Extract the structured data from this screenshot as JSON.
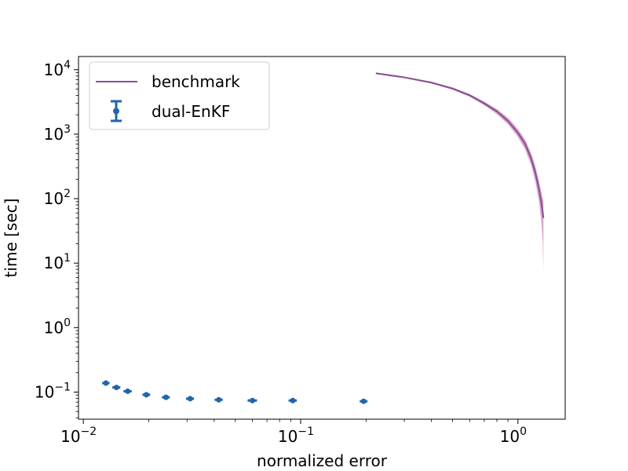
{
  "chart_data": {
    "type": "line",
    "x_scale": "log",
    "y_scale": "log",
    "xlim": [
      0.0095,
      1.65
    ],
    "ylim": [
      0.038,
      16000
    ],
    "xlabel": "normalized error",
    "ylabel": "time [sec]",
    "grid": false,
    "legend_position": "upper-left",
    "x_ticks": [
      {
        "value": 0.01,
        "base": "10",
        "exp": "−2"
      },
      {
        "value": 0.1,
        "base": "10",
        "exp": "−1"
      },
      {
        "value": 1,
        "base": "10",
        "exp": "0"
      }
    ],
    "y_ticks": [
      {
        "value": 0.1,
        "base": "10",
        "exp": "−1"
      },
      {
        "value": 1,
        "base": "10",
        "exp": "0"
      },
      {
        "value": 10,
        "base": "10",
        "exp": "1"
      },
      {
        "value": 100,
        "base": "10",
        "exp": "2"
      },
      {
        "value": 1000,
        "base": "10",
        "exp": "3"
      },
      {
        "value": 10000,
        "base": "10",
        "exp": "4"
      }
    ],
    "series": [
      {
        "name": "benchmark",
        "kind": "line",
        "color": "#8a4b96",
        "band_color": "#c98cb4",
        "x": [
          0.222,
          0.3,
          0.4,
          0.5,
          0.6,
          0.7,
          0.8,
          0.9,
          1.0,
          1.08,
          1.15,
          1.2,
          1.25,
          1.28,
          1.3,
          1.31
        ],
        "y": [
          8800,
          7600,
          6300,
          5100,
          4000,
          3000,
          2250,
          1600,
          1050,
          700,
          420,
          260,
          140,
          90,
          62,
          50
        ],
        "y_lower": [
          8600,
          7400,
          6100,
          4900,
          3800,
          2800,
          2050,
          1420,
          900,
          580,
          330,
          190,
          90,
          45,
          22,
          7.5
        ],
        "y_upper": [
          9000,
          7800,
          6500,
          5300,
          4200,
          3200,
          2450,
          1800,
          1200,
          820,
          510,
          330,
          190,
          130,
          100,
          95
        ]
      },
      {
        "name": "dual-EnKF",
        "kind": "errorbar",
        "color": "#2166ac",
        "x": [
          0.0127,
          0.0142,
          0.016,
          0.0195,
          0.024,
          0.031,
          0.042,
          0.06,
          0.092,
          0.195
        ],
        "y": [
          0.138,
          0.118,
          0.103,
          0.091,
          0.083,
          0.079,
          0.076,
          0.074,
          0.074,
          0.072
        ],
        "x_err": [
          0.0005,
          0.0006,
          0.0007,
          0.0008,
          0.001,
          0.0013,
          0.0018,
          0.003,
          0.004,
          0.008
        ]
      }
    ]
  }
}
